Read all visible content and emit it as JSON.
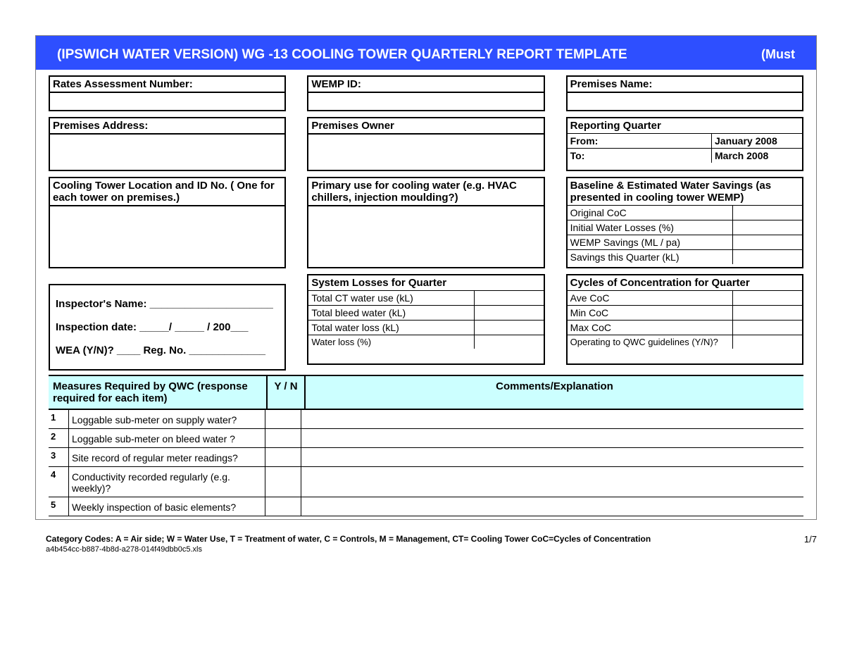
{
  "colors": {
    "header_bg": "#2e4fff",
    "header_text": "#ffffff",
    "teal_bg": "#ccffff",
    "border": "#000000"
  },
  "header": {
    "title": "(IPSWICH WATER VERSION) WG -13 COOLING TOWER QUARTERLY REPORT TEMPLATE",
    "right": "(Must"
  },
  "row1": {
    "rates": "Rates Assessment Number:",
    "wemp": "WEMP ID:",
    "premises_name": "Premises Name:"
  },
  "row2": {
    "address": "Premises Address:",
    "owner": "Premises Owner",
    "rq_title": "Reporting Quarter",
    "rq_from_label": "From:",
    "rq_from_value": "January 2008",
    "rq_to_label": "To:",
    "rq_to_value": "March 2008"
  },
  "row3": {
    "loc_title": "Cooling Tower Location and ID No.           ( One for each tower on premises.)",
    "primary_title": "Primary use for cooling water (e.g. HVAC chillers, injection moulding?)",
    "baseline_title": "Baseline & Estimated Water Savings (as presented in cooling tower WEMP)",
    "baseline_rows": [
      "Original CoC",
      "Initial Water Losses (%)",
      "WEMP Savings (ML / pa)",
      "Savings this Quarter (kL)"
    ]
  },
  "row4": {
    "inspector_name": "Inspector's Name: _____________________",
    "inspection_date": "Inspection date: _____/ _____ / 200___",
    "wea": "WEA (Y/N)? ____     Reg. No. _____________",
    "losses_title": "System Losses for Quarter",
    "losses_rows": [
      "Total CT water use (kL)",
      "Total bleed water (kL)",
      "Total water loss (kL)",
      "Water loss (%)"
    ],
    "coc_title": "Cycles of Concentration for Quarter",
    "coc_rows": [
      "Ave CoC",
      "Min CoC",
      "Max CoC",
      "Operating to QWC guidelines (Y/N)?"
    ]
  },
  "measures": {
    "col_a": "Measures Required by QWC (response required for each item)",
    "col_b": "Y / N",
    "col_c": "Comments/Explanation",
    "items": [
      {
        "n": "1",
        "t": "Loggable sub-meter on supply water?"
      },
      {
        "n": "2",
        "t": "Loggable sub-meter on bleed water ?"
      },
      {
        "n": "3",
        "t": "Site record of regular meter readings?"
      },
      {
        "n": "4",
        "t": "Conductivity recorded regularly (e.g. weekly)?"
      },
      {
        "n": "5",
        "t": "Weekly inspection of basic elements?"
      }
    ]
  },
  "footer": {
    "codes": "Category Codes: A = Air side; W = Water Use, T = Treatment of water, C = Controls, M = Management, CT= Cooling Tower CoC=Cycles of Concentration",
    "filename": "a4b454cc-b887-4b8d-a278-014f49dbb0c5.xls",
    "page": "1/7"
  }
}
